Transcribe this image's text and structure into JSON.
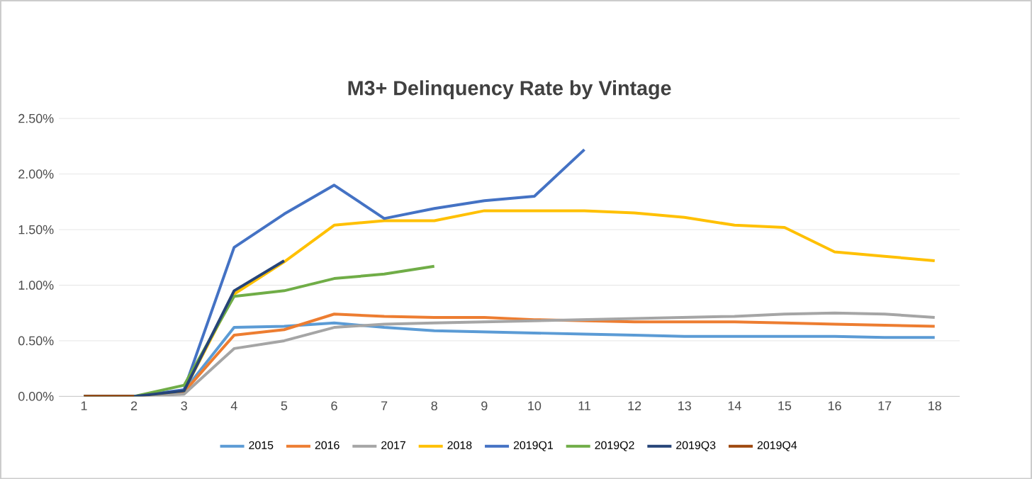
{
  "chart_data": {
    "type": "line",
    "title": "M3+ Delinquency Rate by Vintage",
    "categories": [
      "1",
      "2",
      "3",
      "4",
      "5",
      "6",
      "7",
      "8",
      "9",
      "10",
      "11",
      "12",
      "13",
      "14",
      "15",
      "16",
      "17",
      "18"
    ],
    "series": [
      {
        "name": "2015",
        "color": "#5b9bd5",
        "values": [
          0,
          0,
          0.05,
          0.62,
          0.63,
          0.66,
          0.62,
          0.59,
          0.58,
          0.57,
          0.56,
          0.55,
          0.54,
          0.54,
          0.54,
          0.54,
          0.53,
          0.53
        ]
      },
      {
        "name": "2016",
        "color": "#ed7d31",
        "values": [
          0,
          0,
          0.04,
          0.55,
          0.6,
          0.74,
          0.72,
          0.71,
          0.71,
          0.69,
          0.68,
          0.67,
          0.67,
          0.67,
          0.66,
          0.65,
          0.64,
          0.63
        ]
      },
      {
        "name": "2017",
        "color": "#a5a5a5",
        "values": [
          0,
          0,
          0.02,
          0.43,
          0.5,
          0.62,
          0.65,
          0.66,
          0.67,
          0.68,
          0.69,
          0.7,
          0.71,
          0.72,
          0.74,
          0.75,
          0.74,
          0.71
        ]
      },
      {
        "name": "2018",
        "color": "#ffc000",
        "values": [
          0,
          0,
          0.05,
          0.92,
          1.21,
          1.54,
          1.58,
          1.58,
          1.67,
          1.67,
          1.67,
          1.65,
          1.61,
          1.54,
          1.52,
          1.3,
          1.26,
          1.22
        ]
      },
      {
        "name": "2019Q1",
        "color": "#4472c4",
        "values": [
          0,
          0,
          0.06,
          1.34,
          1.64,
          1.9,
          1.6,
          1.69,
          1.76,
          1.8,
          2.22,
          null,
          null,
          null,
          null,
          null,
          null,
          null
        ]
      },
      {
        "name": "2019Q2",
        "color": "#70ad47",
        "values": [
          0,
          0,
          0.1,
          0.9,
          0.95,
          1.06,
          1.1,
          1.17,
          null,
          null,
          null,
          null,
          null,
          null,
          null,
          null,
          null,
          null
        ]
      },
      {
        "name": "2019Q3",
        "color": "#264478",
        "values": [
          0,
          0,
          0.05,
          0.95,
          1.22,
          null,
          null,
          null,
          null,
          null,
          null,
          null,
          null,
          null,
          null,
          null,
          null,
          null
        ]
      },
      {
        "name": "2019Q4",
        "color": "#9e480e",
        "values": [
          0,
          0,
          null,
          null,
          null,
          null,
          null,
          null,
          null,
          null,
          null,
          null,
          null,
          null,
          null,
          null,
          null,
          null
        ]
      }
    ],
    "ylim": [
      0,
      2.5
    ],
    "yticks": [
      {
        "value": 0,
        "label": "0.00%"
      },
      {
        "value": 0.5,
        "label": "0.50%"
      },
      {
        "value": 1,
        "label": "1.00%"
      },
      {
        "value": 1.5,
        "label": "1.50%"
      },
      {
        "value": 2,
        "label": "2.00%"
      },
      {
        "value": 2.5,
        "label": "2.50%"
      }
    ],
    "grid": "y",
    "legend": "bottom",
    "marker": "none",
    "line_style": "solid"
  }
}
